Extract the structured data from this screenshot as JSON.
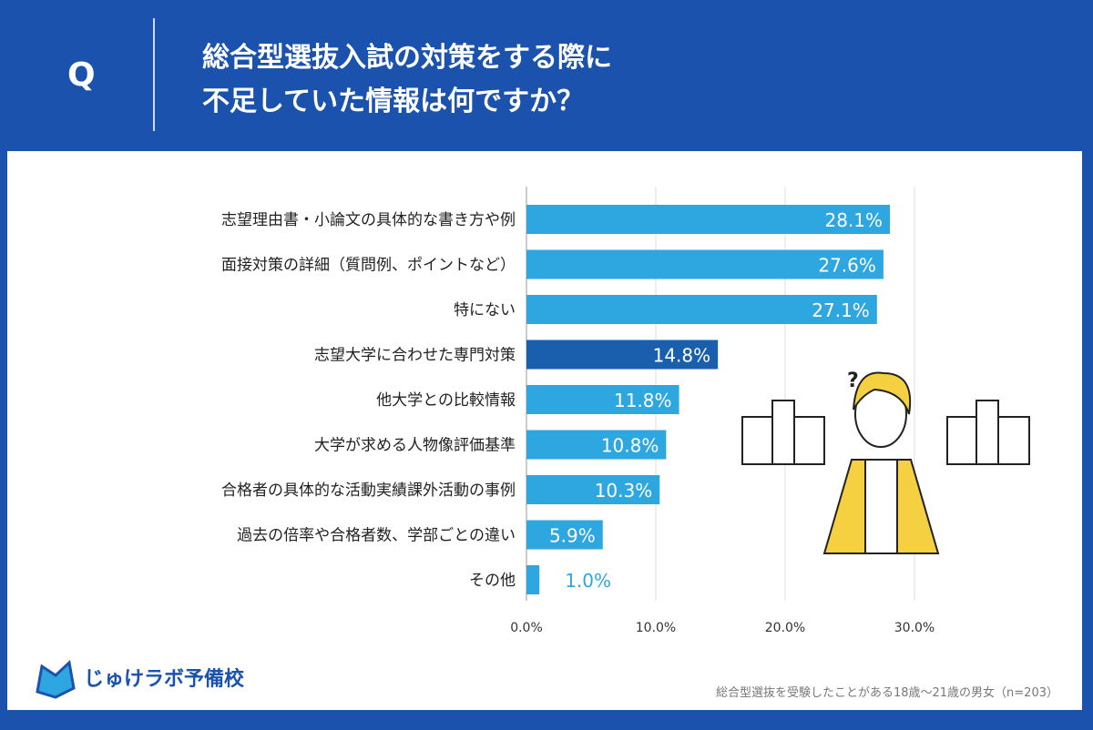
{
  "header": {
    "q_label": "Q",
    "title_line1": "総合型選抜入試の対策をする際に",
    "title_line2": "不足していた情報は何ですか？"
  },
  "chart_data": {
    "type": "bar",
    "orientation": "horizontal",
    "categories": [
      "志望理由書・小論文の具体的な書き方や例",
      "面接対策の詳細（質問例、ポイントなど）",
      "特にない",
      "志望大学に合わせた専門対策",
      "他大学との比較情報",
      "大学が求める人物像評価基準",
      "合格者の具体的な活動実績課外活動の事例",
      "過去の倍率や合格者数、学部ごとの違い",
      "その他"
    ],
    "values": [
      28.1,
      27.6,
      27.1,
      14.8,
      11.8,
      10.8,
      10.3,
      5.9,
      1.0
    ],
    "data_labels": [
      "28.1%",
      "27.6%",
      "27.1%",
      "14.8%",
      "11.8%",
      "10.8%",
      "10.3%",
      "5.9%",
      "1.0%"
    ],
    "xticks": [
      "0.0%",
      "10.0%",
      "20.0%",
      "30.0%"
    ],
    "xlim": [
      0,
      30
    ],
    "grid": true,
    "highlight_index": 3,
    "colors": {
      "bar": "#2ea7e0",
      "highlight": "#1a5fad"
    }
  },
  "footer": {
    "note": "総合型選抜を受験したことがある18歳～21歳の男女（n=203）",
    "logo_text": "じゅけラボ予備校"
  }
}
